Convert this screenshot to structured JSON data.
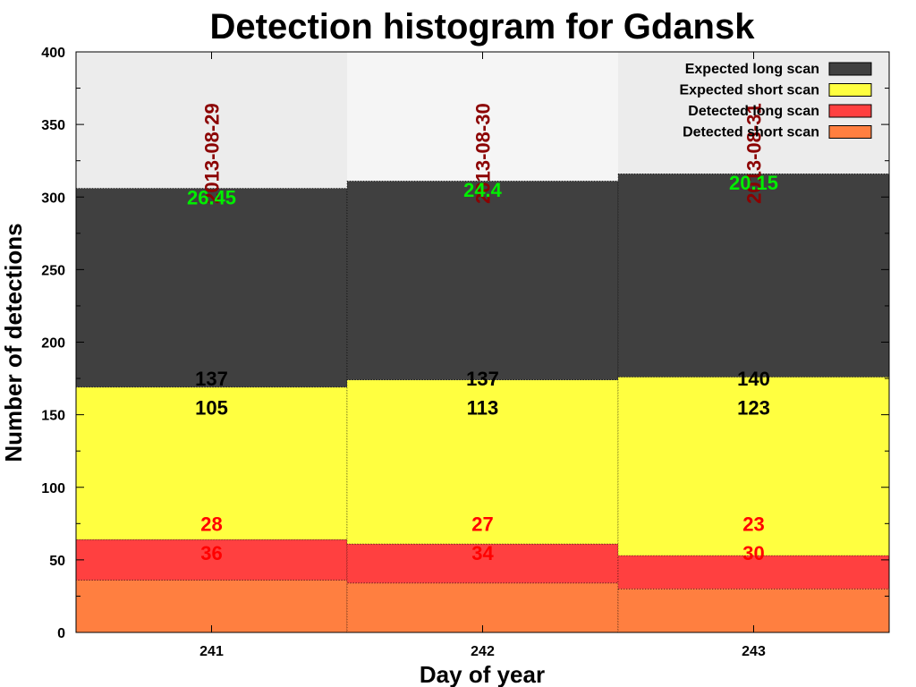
{
  "chart_data": {
    "type": "bar",
    "title": "Detection histogram for Gdansk",
    "xlabel": "Day of year",
    "ylabel": "Number of detections",
    "ylim": [
      0,
      400
    ],
    "yticks": [
      "0",
      "50",
      "100",
      "150",
      "200",
      "250",
      "300",
      "350",
      "400"
    ],
    "categories": [
      "241",
      "242",
      "243"
    ],
    "dates": [
      "2013-08-29",
      "2013-08-30",
      "2013-08-31"
    ],
    "stack_order": "bottom-to-top: Detected short scan, Detected long scan, Expected short scan, Expected long scan",
    "series": [
      {
        "name": "Expected long scan",
        "color": "#404040",
        "values": [
          137,
          137,
          140
        ]
      },
      {
        "name": "Expected short scan",
        "color": "#ffff40",
        "values": [
          105,
          113,
          123
        ]
      },
      {
        "name": "Detected long scan",
        "color": "#ff4040",
        "values": [
          28,
          27,
          23
        ]
      },
      {
        "name": "Detected short scan",
        "color": "#ff7f40",
        "values": [
          36,
          34,
          30
        ]
      }
    ],
    "green_labels": [
      "26.45",
      "24.4",
      "20.15"
    ],
    "green_color": "#00ee00",
    "date_color": "#8b0000",
    "red_label_color": "#ff0000",
    "background_colors": [
      "#ececec",
      "#f5f5f5",
      "#ececec"
    ],
    "legend_position": "top-right",
    "grid": false
  }
}
